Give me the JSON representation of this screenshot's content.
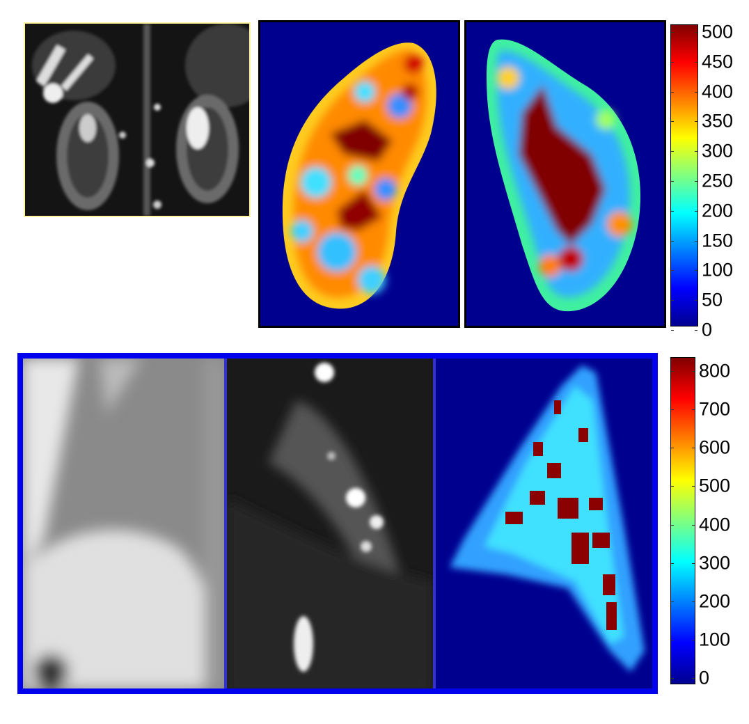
{
  "figure": {
    "top_row": {
      "panels": [
        {
          "name": "coronal-grayscale-mri",
          "border_color": "#fff4a0"
        },
        {
          "name": "right-kidney-map",
          "border_color": "#000000"
        },
        {
          "name": "left-kidney-map",
          "border_color": "#000000"
        }
      ],
      "colorbar": {
        "colormap": "jet",
        "min": 0,
        "max": 500,
        "ticks": [
          "0",
          "50",
          "100",
          "150",
          "200",
          "250",
          "300",
          "350",
          "400",
          "450",
          "500"
        ]
      }
    },
    "bottom_row": {
      "frame_color": "#0000ee",
      "panels": [
        {
          "name": "grayscale-anatomical",
          "border_color": "#0000ee"
        },
        {
          "name": "grayscale-weighted",
          "border_color": "#3333cc"
        },
        {
          "name": "parameter-map",
          "border_color": "#0000ee"
        }
      ],
      "colorbar": {
        "colormap": "jet",
        "min": 0,
        "max": 800,
        "ticks": [
          "0",
          "100",
          "200",
          "300",
          "400",
          "500",
          "600",
          "700",
          "800"
        ]
      }
    }
  }
}
